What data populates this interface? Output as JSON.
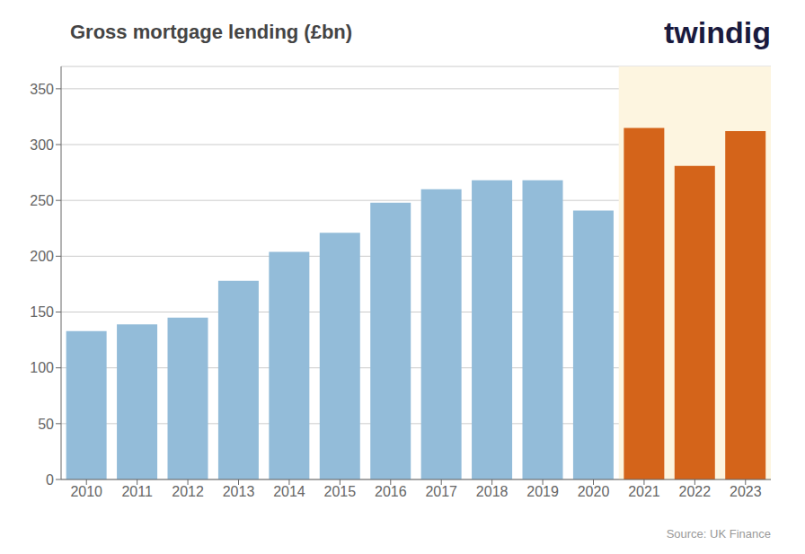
{
  "chart_data": {
    "type": "bar",
    "title": "Gross mortgage lending (£bn)",
    "categories": [
      "2010",
      "2011",
      "2012",
      "2013",
      "2014",
      "2015",
      "2016",
      "2017",
      "2018",
      "2019",
      "2020",
      "2021",
      "2022",
      "2023"
    ],
    "values": [
      133,
      139,
      145,
      178,
      204,
      221,
      248,
      260,
      268,
      268,
      241,
      315,
      281,
      312
    ],
    "colors": [
      "#93bcd9",
      "#93bcd9",
      "#93bcd9",
      "#93bcd9",
      "#93bcd9",
      "#93bcd9",
      "#93bcd9",
      "#93bcd9",
      "#93bcd9",
      "#93bcd9",
      "#93bcd9",
      "#d4641a",
      "#d4641a",
      "#d4641a"
    ],
    "ylim": [
      0,
      370
    ],
    "yticks": [
      0,
      50,
      100,
      150,
      200,
      250,
      300,
      350
    ],
    "grid": true,
    "annotations": [
      "Source: UK Finance",
      "twindig"
    ]
  }
}
